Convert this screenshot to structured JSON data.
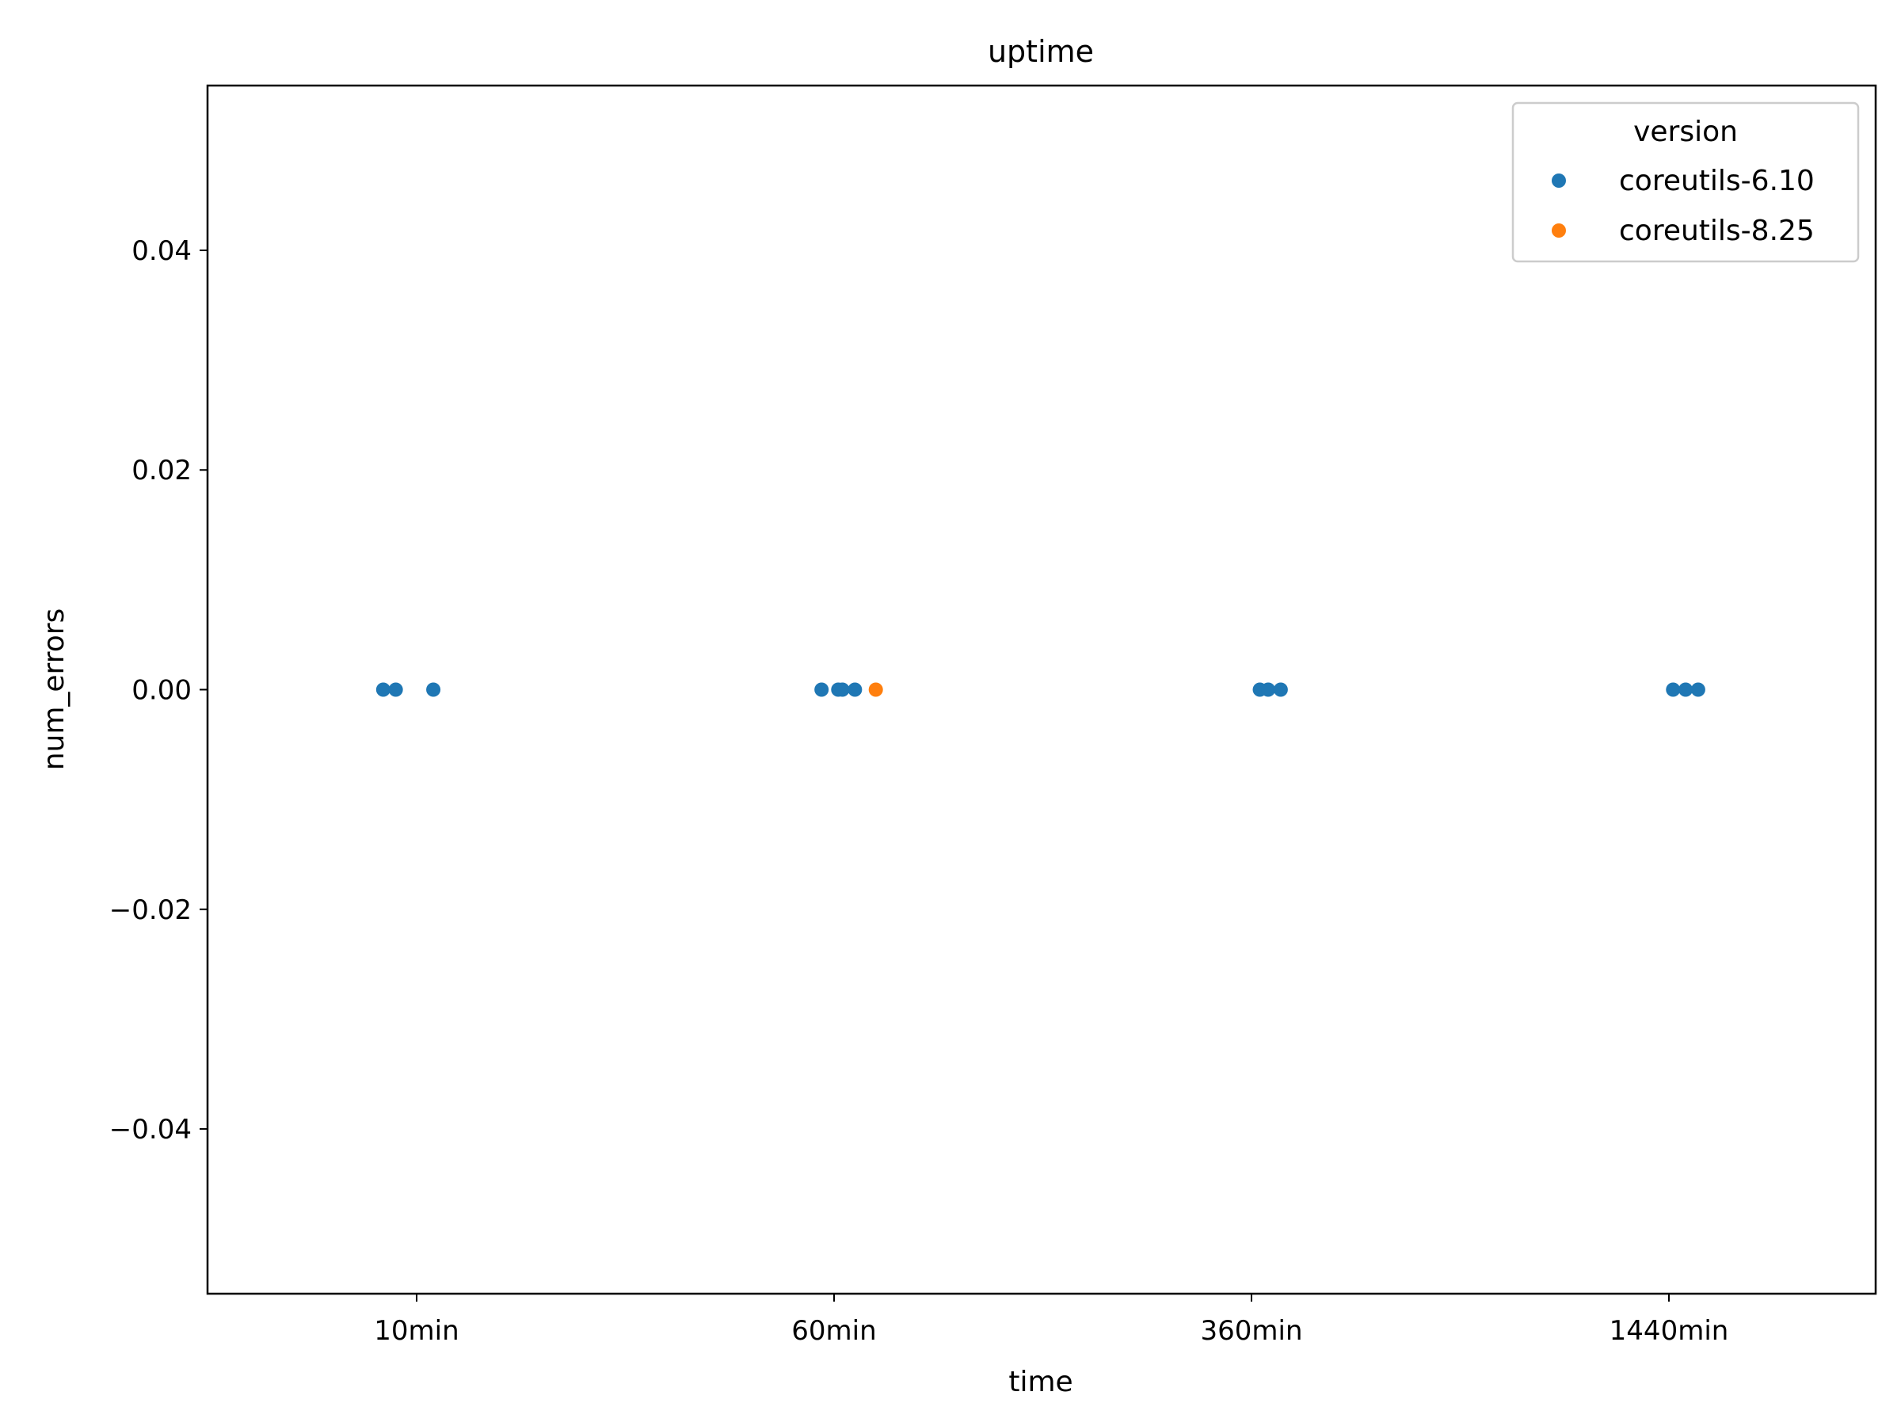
{
  "chart_data": {
    "type": "scatter",
    "title": "uptime",
    "xlabel": "time",
    "ylabel": "num_errors",
    "categories": [
      "10min",
      "60min",
      "360min",
      "1440min"
    ],
    "ylim": [
      -0.055,
      0.055
    ],
    "yticks": [
      -0.04,
      -0.02,
      0.0,
      0.02,
      0.04
    ],
    "ytick_labels": [
      "−0.04",
      "−0.02",
      "0.00",
      "0.02",
      "0.04"
    ],
    "grid": false,
    "legend": {
      "title": "version",
      "placement": "upper right"
    },
    "series": [
      {
        "name": "coreutils-6.10",
        "color": "#1f77b4",
        "points": [
          {
            "category": "10min",
            "jitter": -0.08,
            "y": 0.0
          },
          {
            "category": "10min",
            "jitter": -0.05,
            "y": 0.0
          },
          {
            "category": "10min",
            "jitter": 0.04,
            "y": 0.0
          },
          {
            "category": "60min",
            "jitter": -0.03,
            "y": 0.0
          },
          {
            "category": "60min",
            "jitter": 0.01,
            "y": 0.0
          },
          {
            "category": "60min",
            "jitter": 0.02,
            "y": 0.0
          },
          {
            "category": "60min",
            "jitter": 0.05,
            "y": 0.0
          },
          {
            "category": "360min",
            "jitter": 0.02,
            "y": 0.0
          },
          {
            "category": "360min",
            "jitter": 0.04,
            "y": 0.0
          },
          {
            "category": "360min",
            "jitter": 0.07,
            "y": 0.0
          },
          {
            "category": "1440min",
            "jitter": 0.01,
            "y": 0.0
          },
          {
            "category": "1440min",
            "jitter": 0.04,
            "y": 0.0
          },
          {
            "category": "1440min",
            "jitter": 0.07,
            "y": 0.0
          }
        ]
      },
      {
        "name": "coreutils-8.25",
        "color": "#ff7f0e",
        "points": [
          {
            "category": "60min",
            "jitter": 0.1,
            "y": 0.0
          }
        ]
      }
    ]
  }
}
